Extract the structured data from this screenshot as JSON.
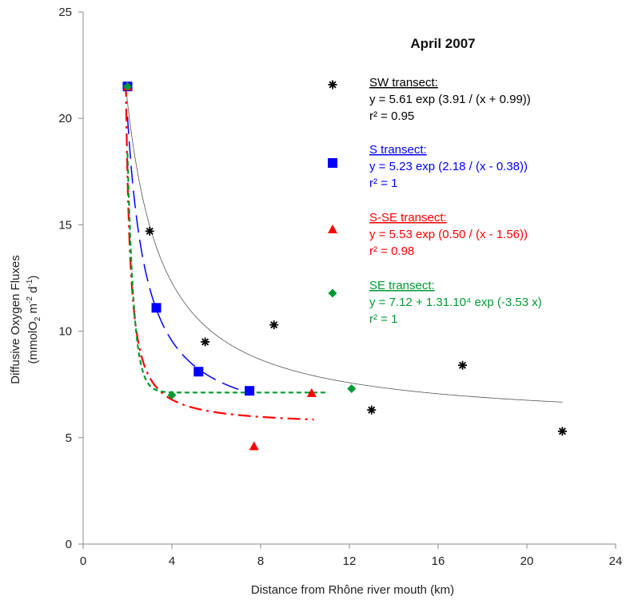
{
  "chart_data": {
    "type": "scatter",
    "title": "April 2007",
    "xlabel": "Distance from Rhône river mouth (km)",
    "ylabel_line1": "Diffusive Oxygen Fluxes",
    "ylabel_line2_parts": [
      "(mmolO",
      "2",
      " m",
      "-2",
      " d",
      "-1",
      ")"
    ],
    "xlim": [
      0,
      24
    ],
    "ylim": [
      0,
      25
    ],
    "xticks": [
      "0",
      "4",
      "8",
      "12",
      "16",
      "20",
      "24"
    ],
    "yticks": [
      "0",
      "5",
      "10",
      "15",
      "20",
      "25"
    ],
    "grid": false,
    "legend_position": "top-right",
    "series": [
      {
        "name": "SW transect:",
        "marker": "star",
        "color": "#000000",
        "equation": "y = 5.61 exp (3.91 / (x + 0.99))",
        "r2": "r² = 0.95",
        "fit": {
          "type": "exp_recip",
          "a": 5.61,
          "b": 3.91,
          "c": 0.99,
          "x_range": [
            1.9,
            21.6
          ],
          "dash": "solid",
          "width": 0.8
        },
        "points": [
          [
            2.0,
            21.5
          ],
          [
            3.0,
            14.7
          ],
          [
            5.5,
            9.5
          ],
          [
            8.6,
            10.3
          ],
          [
            13.0,
            6.3
          ],
          [
            17.1,
            8.4
          ],
          [
            21.6,
            5.3
          ]
        ]
      },
      {
        "name": "S transect:",
        "marker": "square",
        "color": "#0000ff",
        "equation": "y = 5.23 exp (2.18 / (x - 0.38))",
        "r2": "r² = 1",
        "fit": {
          "type": "exp_recip",
          "a": 5.23,
          "b": 2.18,
          "c": -0.38,
          "x_range": [
            2.0,
            7.5
          ],
          "dash": "long-dash",
          "width": 1.5
        },
        "points": [
          [
            2.0,
            21.5
          ],
          [
            3.3,
            11.1
          ],
          [
            5.2,
            8.1
          ],
          [
            7.5,
            7.2
          ]
        ]
      },
      {
        "name": "S-SE transect:",
        "marker": "triangle",
        "color": "#ff0000",
        "equation": "y = 5.53 exp (0.50 / (x - 1.56))",
        "r2": "r² = 0.98",
        "fit": {
          "type": "exp_recip",
          "a": 5.53,
          "b": 0.5,
          "c": -1.56,
          "x_range": [
            1.9,
            10.4
          ],
          "dash": "dash-dot",
          "width": 2.2
        },
        "points": [
          [
            2.0,
            21.5
          ],
          [
            7.7,
            4.6
          ],
          [
            10.3,
            7.1
          ]
        ]
      },
      {
        "name": "SE transect:",
        "marker": "diamond",
        "color": "#009933",
        "equation": "y = 7.12 + 1.31.10⁴ exp (-3.53 x)",
        "r2": "r² = 1",
        "fit": {
          "type": "const_exp",
          "a": 7.12,
          "b": 13100,
          "k": 3.53,
          "x_range": [
            2.0,
            11.0
          ],
          "dash": "short-dash",
          "width": 2.2
        },
        "points": [
          [
            2.0,
            21.5
          ],
          [
            4.0,
            7.0
          ],
          [
            12.1,
            7.3
          ]
        ]
      }
    ]
  }
}
